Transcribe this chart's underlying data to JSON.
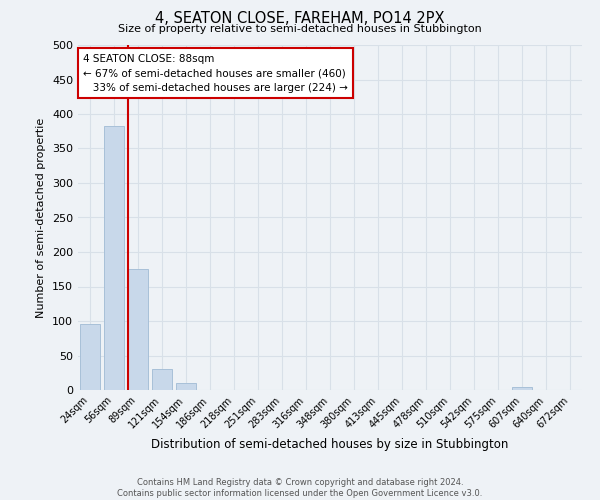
{
  "title": "4, SEATON CLOSE, FAREHAM, PO14 2PX",
  "subtitle": "Size of property relative to semi-detached houses in Stubbington",
  "xlabel": "Distribution of semi-detached houses by size in Stubbington",
  "ylabel": "Number of semi-detached propertie",
  "footer_line1": "Contains HM Land Registry data © Crown copyright and database right 2024.",
  "footer_line2": "Contains public sector information licensed under the Open Government Licence v3.0.",
  "categories": [
    "24sqm",
    "56sqm",
    "89sqm",
    "121sqm",
    "154sqm",
    "186sqm",
    "218sqm",
    "251sqm",
    "283sqm",
    "316sqm",
    "348sqm",
    "380sqm",
    "413sqm",
    "445sqm",
    "478sqm",
    "510sqm",
    "542sqm",
    "575sqm",
    "607sqm",
    "640sqm",
    "672sqm"
  ],
  "values": [
    96,
    383,
    175,
    30,
    10,
    0,
    0,
    0,
    0,
    0,
    0,
    0,
    0,
    0,
    0,
    0,
    0,
    0,
    5,
    0,
    0
  ],
  "bar_color": "#c8d8ea",
  "bar_edge_color": "#a8c0d8",
  "vline_color": "#cc0000",
  "vline_x_index": 2,
  "annotation_line1": "4 SEATON CLOSE: 88sqm",
  "annotation_line2": "← 67% of semi-detached houses are smaller (460)",
  "annotation_line3": "   33% of semi-detached houses are larger (224) →",
  "annotation_box_color": "white",
  "annotation_box_edge": "#cc0000",
  "ylim": [
    0,
    500
  ],
  "yticks": [
    0,
    50,
    100,
    150,
    200,
    250,
    300,
    350,
    400,
    450,
    500
  ],
  "grid_color": "#d8e0e8",
  "background_color": "#eef2f6"
}
